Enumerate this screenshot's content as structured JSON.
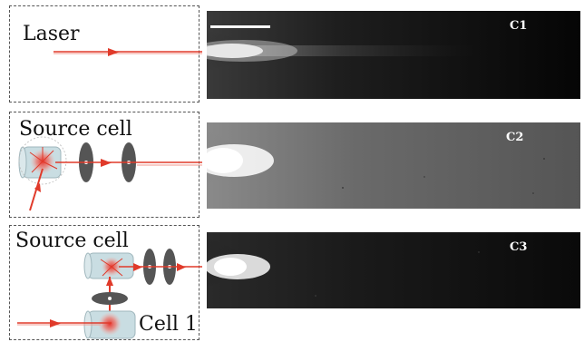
{
  "panels": [
    {
      "schematic_label": "Laser",
      "image_label": "C1"
    },
    {
      "schematic_label": "Source cell",
      "image_label": "C2"
    },
    {
      "schematic_label": "Source cell",
      "schematic_sublabel": "Cell 1",
      "image_label": "C3"
    }
  ],
  "colors": {
    "beam": "#e03a2a",
    "aperture": "#555555",
    "cell_fill": "#c9dde2",
    "glow": "#e8322a"
  }
}
